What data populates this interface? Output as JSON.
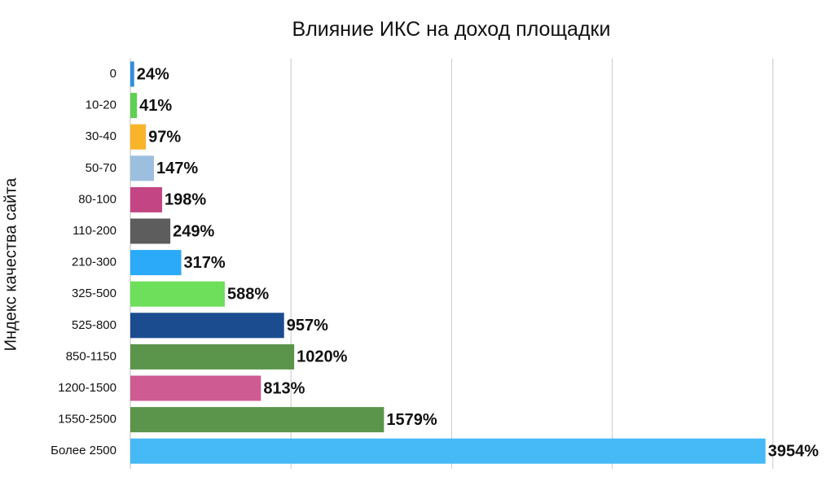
{
  "chart_data": {
    "type": "bar",
    "orientation": "horizontal",
    "title": "Влияние ИКС на доход площадки",
    "xlabel": "",
    "ylabel": "Индекс качества сайта",
    "xlim": [
      0,
      4000
    ],
    "grid": true,
    "categories": [
      "0",
      "10-20",
      "30-40",
      "50-70",
      "80-100",
      "110-200",
      "210-300",
      "325-500",
      "525-800",
      "850-1150",
      "1200-1500",
      "1550-2500",
      "Более 2500"
    ],
    "values": [
      24,
      41,
      97,
      147,
      198,
      249,
      317,
      588,
      957,
      1020,
      813,
      1579,
      3954
    ],
    "value_labels": [
      "24%",
      "41%",
      "97%",
      "147%",
      "198%",
      "249%",
      "317%",
      "588%",
      "957%",
      "1020%",
      "813%",
      "1579%",
      "3954%"
    ],
    "colors": [
      "#2f8fde",
      "#5fd04f",
      "#f9b42a",
      "#9dbfdf",
      "#c34584",
      "#5d5d5d",
      "#2aaaf8",
      "#6ddf5a",
      "#1a4c8f",
      "#5b944b",
      "#ce5b91",
      "#5b944b",
      "#46b9f7"
    ]
  }
}
